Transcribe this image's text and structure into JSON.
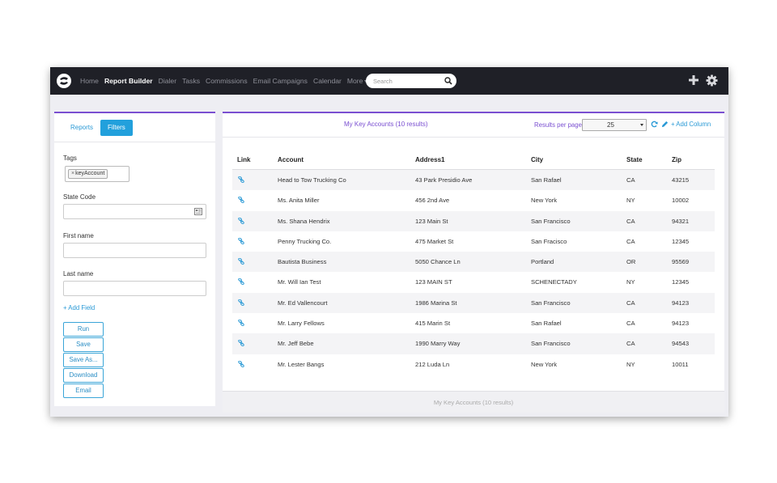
{
  "navbar": {
    "items": [
      {
        "label": "Home",
        "active": false
      },
      {
        "label": "Report Builder",
        "active": true
      },
      {
        "label": "Dialer",
        "active": false
      },
      {
        "label": "Tasks",
        "active": false
      },
      {
        "label": "Commissions",
        "active": false
      },
      {
        "label": "Email Campaigns",
        "active": false
      },
      {
        "label": "Calendar",
        "active": false
      },
      {
        "label": "More",
        "active": false,
        "dropdown": true
      }
    ],
    "search_placeholder": "Search",
    "icons": [
      "logo-icon",
      "search-icon",
      "plus-icon",
      "gear-icon"
    ]
  },
  "sidebar": {
    "tabs": [
      {
        "label": "Reports",
        "active": false
      },
      {
        "label": "Filters",
        "active": true
      }
    ],
    "tags_label": "Tags",
    "tag_value": "keyAccount",
    "tag_remove": "×",
    "state_code_label": "State Code",
    "first_name_label": "First name",
    "last_name_label": "Last name",
    "add_field": "+ Add Field",
    "buttons": [
      "Run",
      "Save",
      "Save As...",
      "Download",
      "Email"
    ]
  },
  "main": {
    "title": "My Key Accounts (10 results)",
    "results_per_page_label": "Results per page",
    "results_per_page_value": "25",
    "add_column": "+ Add Column",
    "footer": "My Key Accounts (10 results)",
    "columns": [
      "Link",
      "Account",
      "Address1",
      "City",
      "State",
      "Zip"
    ],
    "rows": [
      [
        "Head to Tow Trucking Co",
        "43 Park Presidio Ave",
        "San Rafael",
        "CA",
        "43215"
      ],
      [
        "Ms. Anita Miller",
        "456 2nd Ave",
        "New York",
        "NY",
        "10002"
      ],
      [
        "Ms. Shana Hendrix",
        "123 Main St",
        "San Francisco",
        "CA",
        "94321"
      ],
      [
        "Penny Trucking Co.",
        "475 Market St",
        "San Fracisco",
        "CA",
        "12345"
      ],
      [
        "Bautista Business",
        "5050 Chance Ln",
        "Portland",
        "OR",
        "95569"
      ],
      [
        "Mr. Will Ian Test",
        "123 MAIN ST",
        "SCHENECTADY",
        "NY",
        "12345"
      ],
      [
        "Mr. Ed Vallencourt",
        "1986 Marina St",
        "San Francisco",
        "CA",
        "94123"
      ],
      [
        "Mr. Larry Fellows",
        "415 Marin St",
        "San Rafael",
        "CA",
        "94123"
      ],
      [
        "Mr. Jeff Bebe",
        "1990 Marry Way",
        "San Francisco",
        "CA",
        "94543"
      ],
      [
        "Mr. Lester Bangs",
        "212 Luda Ln",
        "New York",
        "NY",
        "10011"
      ]
    ]
  },
  "colors": {
    "navbar_bg": "#1f2027",
    "accent_purple": "#7a4fd1",
    "accent_blue": "#22a0dc"
  }
}
